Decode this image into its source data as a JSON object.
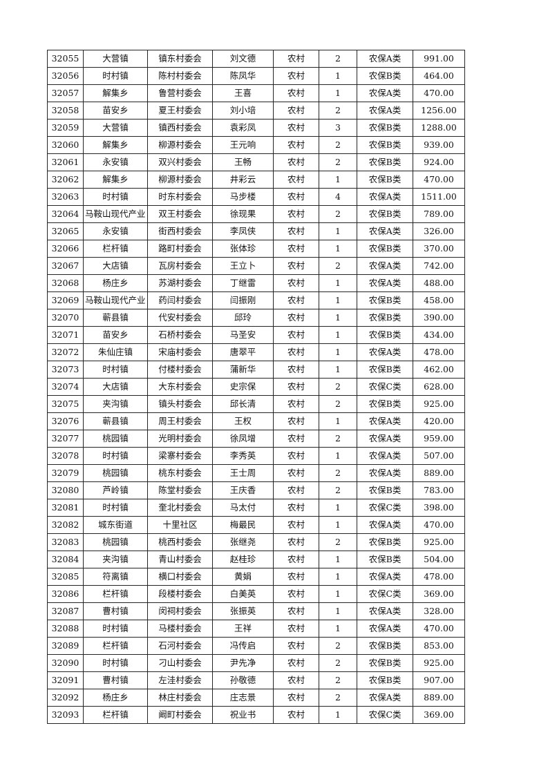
{
  "rows": [
    [
      "32055",
      "大营镇",
      "镇东村委会",
      "刘文德",
      "农村",
      "2",
      "农保A类",
      "991.00"
    ],
    [
      "32056",
      "时村镇",
      "陈村村委会",
      "陈凤华",
      "农村",
      "1",
      "农保B类",
      "464.00"
    ],
    [
      "32057",
      "解集乡",
      "鲁营村委会",
      "王喜",
      "农村",
      "1",
      "农保A类",
      "470.00"
    ],
    [
      "32058",
      "苗安乡",
      "夏王村委会",
      "刘小培",
      "农村",
      "2",
      "农保A类",
      "1256.00"
    ],
    [
      "32059",
      "大营镇",
      "镇西村委会",
      "袁彩凤",
      "农村",
      "3",
      "农保B类",
      "1288.00"
    ],
    [
      "32060",
      "解集乡",
      "柳源村委会",
      "王元响",
      "农村",
      "2",
      "农保B类",
      "939.00"
    ],
    [
      "32061",
      "永安镇",
      "双兴村委会",
      "王畅",
      "农村",
      "2",
      "农保B类",
      "924.00"
    ],
    [
      "32062",
      "解集乡",
      "柳源村委会",
      "井彩云",
      "农村",
      "1",
      "农保B类",
      "470.00"
    ],
    [
      "32063",
      "时村镇",
      "时东村委会",
      "马步楼",
      "农村",
      "4",
      "农保A类",
      "1511.00"
    ],
    [
      "32064",
      "马鞍山现代产业",
      "双王村委会",
      "徐现果",
      "农村",
      "2",
      "农保B类",
      "789.00"
    ],
    [
      "32065",
      "永安镇",
      "街西村委会",
      "李凤侠",
      "农村",
      "1",
      "农保A类",
      "326.00"
    ],
    [
      "32066",
      "栏杆镇",
      "路町村委会",
      "张体珍",
      "农村",
      "1",
      "农保B类",
      "370.00"
    ],
    [
      "32067",
      "大店镇",
      "瓦房村委会",
      "王立卜",
      "农村",
      "2",
      "农保A类",
      "742.00"
    ],
    [
      "32068",
      "杨庄乡",
      "苏湖村委会",
      "丁继雷",
      "农村",
      "1",
      "农保A类",
      "488.00"
    ],
    [
      "32069",
      "马鞍山现代产业",
      "药闫村委会",
      "闫振刚",
      "农村",
      "1",
      "农保B类",
      "458.00"
    ],
    [
      "32070",
      "蕲县镇",
      "代安村委会",
      "邱玲",
      "农村",
      "1",
      "农保B类",
      "390.00"
    ],
    [
      "32071",
      "苗安乡",
      "石桥村委会",
      "马圣安",
      "农村",
      "1",
      "农保B类",
      "434.00"
    ],
    [
      "32072",
      "朱仙庄镇",
      "宋庙村委会",
      "唐翠平",
      "农村",
      "1",
      "农保A类",
      "478.00"
    ],
    [
      "32073",
      "时村镇",
      "付楼村委会",
      "蒲新华",
      "农村",
      "1",
      "农保B类",
      "462.00"
    ],
    [
      "32074",
      "大店镇",
      "大东村委会",
      "史宗保",
      "农村",
      "2",
      "农保C类",
      "628.00"
    ],
    [
      "32075",
      "夹沟镇",
      "镇头村委会",
      "邱长清",
      "农村",
      "2",
      "农保B类",
      "925.00"
    ],
    [
      "32076",
      "蕲县镇",
      "周王村委会",
      "王权",
      "农村",
      "1",
      "农保A类",
      "420.00"
    ],
    [
      "32077",
      "桃园镇",
      "光明村委会",
      "徐凤增",
      "农村",
      "2",
      "农保A类",
      "959.00"
    ],
    [
      "32078",
      "时村镇",
      "梁寨村委会",
      "李秀英",
      "农村",
      "1",
      "农保A类",
      "507.00"
    ],
    [
      "32079",
      "桃园镇",
      "桃东村委会",
      "王士周",
      "农村",
      "2",
      "农保A类",
      "889.00"
    ],
    [
      "32080",
      "芦岭镇",
      "陈堂村委会",
      "王庆香",
      "农村",
      "2",
      "农保B类",
      "783.00"
    ],
    [
      "32081",
      "时村镇",
      "奎北村委会",
      "马太付",
      "农村",
      "1",
      "农保C类",
      "398.00"
    ],
    [
      "32082",
      "城东街道",
      "十里社区",
      "梅最民",
      "农村",
      "1",
      "农保A类",
      "470.00"
    ],
    [
      "32083",
      "桃园镇",
      "桃西村委会",
      "张继尧",
      "农村",
      "2",
      "农保B类",
      "925.00"
    ],
    [
      "32084",
      "夹沟镇",
      "青山村委会",
      "赵桂珍",
      "农村",
      "1",
      "农保B类",
      "504.00"
    ],
    [
      "32085",
      "符离镇",
      "横口村委会",
      "黄娟",
      "农村",
      "1",
      "农保A类",
      "478.00"
    ],
    [
      "32086",
      "栏杆镇",
      "段楼村委会",
      "白美英",
      "农村",
      "1",
      "农保C类",
      "369.00"
    ],
    [
      "32087",
      "曹村镇",
      "闵祠村委会",
      "张振英",
      "农村",
      "1",
      "农保A类",
      "328.00"
    ],
    [
      "32088",
      "时村镇",
      "马楼村委会",
      "王祥",
      "农村",
      "1",
      "农保A类",
      "470.00"
    ],
    [
      "32089",
      "栏杆镇",
      "石河村委会",
      "冯传启",
      "农村",
      "2",
      "农保B类",
      "853.00"
    ],
    [
      "32090",
      "时村镇",
      "刁山村委会",
      "尹先净",
      "农村",
      "2",
      "农保B类",
      "925.00"
    ],
    [
      "32091",
      "曹村镇",
      "左洼村委会",
      "孙敬德",
      "农村",
      "2",
      "农保B类",
      "907.00"
    ],
    [
      "32092",
      "杨庄乡",
      "林庄村委会",
      "庄志景",
      "农村",
      "2",
      "农保A类",
      "889.00"
    ],
    [
      "32093",
      "栏杆镇",
      "阚町村委会",
      "祝业书",
      "农村",
      "1",
      "农保C类",
      "369.00"
    ]
  ]
}
